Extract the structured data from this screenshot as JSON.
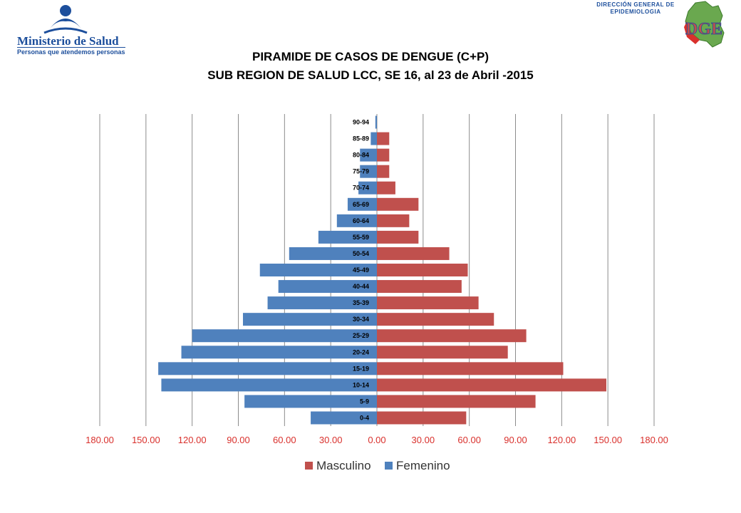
{
  "header": {
    "ministry_name": "Ministerio de Salud",
    "ministry_tagline": "Personas que atendemos personas",
    "dge_line1": "DIRECCIÓN GENERAL DE",
    "dge_line2": "EPIDEMIOLOGIA",
    "dge_logo_letters": "DGE"
  },
  "colors": {
    "masculino": "#c0504d",
    "femenino": "#4f81bd",
    "tick_label": "#d9302c",
    "grid": "#8c8c8c",
    "brand_blue": "#1d4f9c"
  },
  "chart_data": {
    "type": "bar",
    "orientation": "horizontal",
    "layout": "population-pyramid",
    "title": "PIRAMIDE DE CASOS DE DENGUE (C+P)",
    "subtitle": "SUB REGION DE SALUD LCC, SE 16, al 23 de Abril -2015",
    "categories": [
      "90-94",
      "85-89",
      "80-84",
      "75-79",
      "70-74",
      "65-69",
      "60-64",
      "55-59",
      "50-54",
      "45-49",
      "40-44",
      "35-39",
      "30-34",
      "25-29",
      "20-24",
      "15-19",
      "10-14",
      "5-9",
      "0-4"
    ],
    "series": [
      {
        "name": "Masculino",
        "side": "right",
        "values": [
          0,
          8,
          8,
          8,
          12,
          27,
          21,
          27,
          47,
          59,
          55,
          66,
          76,
          97,
          85,
          121,
          149,
          103,
          58
        ]
      },
      {
        "name": "Femenino",
        "side": "left",
        "values": [
          1,
          4,
          11,
          11,
          12,
          19,
          26,
          38,
          57,
          76,
          64,
          71,
          87,
          120,
          127,
          142,
          140,
          86,
          43
        ]
      }
    ],
    "xlim": [
      -180,
      180
    ],
    "xticks": [
      -180,
      -150,
      -120,
      -90,
      -60,
      -30,
      0,
      30,
      60,
      90,
      120,
      150,
      180
    ],
    "xtick_labels": [
      "180.00",
      "150.00",
      "120.00",
      "90.00",
      "60.00",
      "30.00",
      "0.00",
      "30.00",
      "60.00",
      "90.00",
      "120.00",
      "150.00",
      "180.00"
    ],
    "grid": "vertical",
    "legend": {
      "position": "bottom",
      "entries": [
        "Masculino",
        "Femenino"
      ]
    }
  }
}
